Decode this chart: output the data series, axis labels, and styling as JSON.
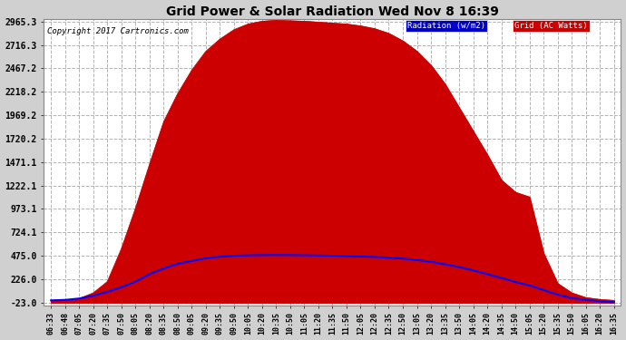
{
  "title": "Grid Power & Solar Radiation Wed Nov 8 16:39",
  "copyright": "Copyright 2017 Cartronics.com",
  "yticks": [
    -23.0,
    226.0,
    475.0,
    724.1,
    973.1,
    1222.1,
    1471.1,
    1720.2,
    1969.2,
    2218.2,
    2467.2,
    2716.3,
    2965.3
  ],
  "ymin": -23.0,
  "ymax": 2965.3,
  "bg_color": "#d0d0d0",
  "plot_bg_color": "#ffffff",
  "grid_color": "#aaaaaa",
  "red_fill_color": "#cc0000",
  "blue_line_color": "#0000ff",
  "legend_radiation_bg": "#0000cc",
  "legend_grid_bg": "#cc0000",
  "xtick_labels": [
    "06:33",
    "06:48",
    "07:05",
    "07:20",
    "07:35",
    "07:50",
    "08:05",
    "08:20",
    "08:35",
    "08:50",
    "09:05",
    "09:20",
    "09:35",
    "09:50",
    "10:05",
    "10:20",
    "10:35",
    "10:50",
    "11:05",
    "11:20",
    "11:35",
    "11:50",
    "12:05",
    "12:20",
    "12:35",
    "12:50",
    "13:05",
    "13:20",
    "13:35",
    "13:50",
    "14:05",
    "14:20",
    "14:35",
    "14:50",
    "15:05",
    "15:20",
    "15:35",
    "15:50",
    "16:05",
    "16:20",
    "16:35"
  ],
  "red_values": [
    0,
    0,
    20,
    80,
    200,
    550,
    980,
    1450,
    1900,
    2200,
    2450,
    2650,
    2780,
    2880,
    2940,
    2970,
    2980,
    2975,
    2970,
    2960,
    2950,
    2940,
    2920,
    2890,
    2840,
    2760,
    2650,
    2500,
    2300,
    2050,
    1800,
    1550,
    1280,
    1150,
    1100,
    500,
    180,
    80,
    30,
    10,
    0
  ],
  "blue_values": [
    0,
    5,
    20,
    50,
    90,
    140,
    200,
    280,
    340,
    390,
    420,
    450,
    465,
    475,
    480,
    482,
    483,
    482,
    480,
    478,
    475,
    472,
    468,
    462,
    455,
    445,
    430,
    410,
    385,
    355,
    320,
    280,
    240,
    195,
    160,
    110,
    60,
    25,
    5,
    -10,
    -20
  ]
}
